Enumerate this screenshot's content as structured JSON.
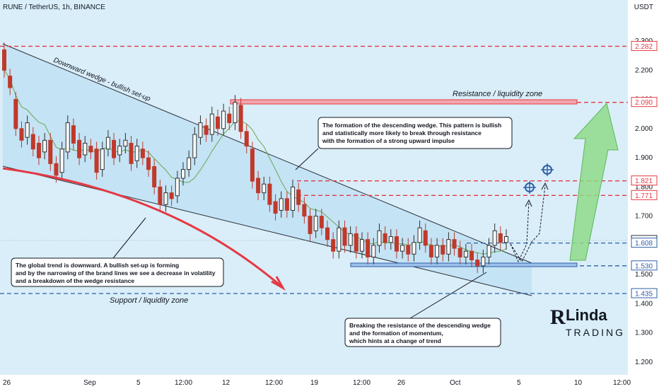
{
  "header": {
    "symbol_line": "RUNE / TetherUS, 1h, BINANCE",
    "currency": "USDT"
  },
  "colors": {
    "background": "#d9eef8",
    "wedge_fill": "#bfe0f5",
    "candle_up": "#2f2f2f",
    "candle_down": "#c0392b",
    "resistance": "#e53944",
    "support": "#2f5ea8",
    "ma_line": "#6aa84f",
    "arrow_green": "#8fd98a"
  },
  "chart_data": {
    "type": "candlestick",
    "x_ticks": [
      "26",
      "Sep",
      "5",
      "12:00",
      "12",
      "12:00",
      "19",
      "12:00",
      "26",
      "Oct",
      "5",
      "10",
      "12:00"
    ],
    "y_ticks": [
      "2.300",
      "2.200",
      "2.100",
      "2.000",
      "1.900",
      "1.800",
      "1.700",
      "1.600",
      "1.500",
      "1.400",
      "1.300",
      "1.200"
    ],
    "ylim": [
      1.18,
      2.32
    ],
    "price_labels": [
      {
        "value": 2.282,
        "label": "2.282",
        "style": "resistance"
      },
      {
        "value": 2.09,
        "label": "2.090",
        "style": "resistance"
      },
      {
        "value": 1.821,
        "label": "1.821",
        "style": "resistance"
      },
      {
        "value": 1.771,
        "label": "1.771",
        "style": "resistance"
      },
      {
        "value": 1.617,
        "label": "1.617",
        "style": "current"
      },
      {
        "value": 1.608,
        "label": "1.608",
        "style": "support"
      },
      {
        "value": 1.53,
        "label": "1.530",
        "style": "support"
      },
      {
        "value": 1.435,
        "label": "1.435",
        "style": "support"
      }
    ],
    "annotations": {
      "wedge_label": "Downward wedge - bullish set-up",
      "resistance_zone": "Resistance / liquidity zone",
      "support_zone": "Support / liquidity zone",
      "note_wedge": [
        "The formation of the descending wedge. This pattern is bullish",
        "and statistically more likely to break through resistance",
        "with the formation of a strong upward impulse"
      ],
      "note_trend": [
        "The global trend is downward. A bullish set-up is forming",
        "and by the narrowing of the brand lines we see a decrease in volatility",
        "and a breakdown of the wedge resistance"
      ],
      "note_breakout": [
        "Breaking the resistance of the descending wedge",
        "and the formation of momentum,",
        "which hints at a change of trend"
      ]
    },
    "price_path": [
      [
        2.27,
        2.2
      ],
      [
        2.18,
        2.14
      ],
      [
        2.1,
        2.0
      ],
      [
        2.0,
        1.96
      ],
      [
        1.97,
        2.02
      ],
      [
        1.98,
        1.93
      ],
      [
        1.95,
        1.9
      ],
      [
        1.92,
        1.96
      ],
      [
        1.96,
        1.88
      ],
      [
        1.88,
        1.84
      ],
      [
        1.85,
        1.93
      ],
      [
        1.92,
        2.02
      ],
      [
        2.01,
        1.95
      ],
      [
        1.96,
        1.9
      ],
      [
        1.91,
        1.95
      ],
      [
        1.94,
        1.92
      ],
      [
        1.93,
        1.85
      ],
      [
        1.86,
        1.93
      ],
      [
        1.93,
        1.97
      ],
      [
        1.96,
        1.9
      ],
      [
        1.91,
        1.94
      ],
      [
        1.94,
        1.96
      ],
      [
        1.95,
        1.88
      ],
      [
        1.89,
        1.94
      ],
      [
        1.93,
        1.9
      ],
      [
        1.9,
        1.86
      ],
      [
        1.87,
        1.8
      ],
      [
        1.8,
        1.74
      ],
      [
        1.74,
        1.78
      ],
      [
        1.78,
        1.76
      ],
      [
        1.77,
        1.83
      ],
      [
        1.83,
        1.86
      ],
      [
        1.86,
        1.9
      ],
      [
        1.9,
        1.98
      ],
      [
        1.97,
        2.02
      ],
      [
        2.01,
        1.98
      ],
      [
        1.98,
        2.05
      ],
      [
        2.04,
        2.0
      ],
      [
        2.0,
        2.06
      ],
      [
        2.05,
        2.02
      ],
      [
        2.02,
        2.09
      ],
      [
        2.08,
        1.99
      ],
      [
        1.99,
        1.94
      ],
      [
        1.93,
        1.82
      ],
      [
        1.83,
        1.78
      ],
      [
        1.78,
        1.81
      ],
      [
        1.81,
        1.74
      ],
      [
        1.75,
        1.71
      ],
      [
        1.72,
        1.76
      ],
      [
        1.76,
        1.72
      ],
      [
        1.72,
        1.8
      ],
      [
        1.79,
        1.74
      ],
      [
        1.74,
        1.7
      ],
      [
        1.7,
        1.64
      ],
      [
        1.65,
        1.7
      ],
      [
        1.7,
        1.66
      ],
      [
        1.66,
        1.62
      ],
      [
        1.62,
        1.58
      ],
      [
        1.58,
        1.66
      ],
      [
        1.66,
        1.6
      ],
      [
        1.6,
        1.64
      ],
      [
        1.64,
        1.58
      ],
      [
        1.58,
        1.62
      ],
      [
        1.62,
        1.56
      ],
      [
        1.56,
        1.6
      ],
      [
        1.6,
        1.65
      ],
      [
        1.64,
        1.61
      ],
      [
        1.61,
        1.63
      ],
      [
        1.63,
        1.58
      ],
      [
        1.58,
        1.6
      ],
      [
        1.6,
        1.57
      ],
      [
        1.57,
        1.61
      ],
      [
        1.61,
        1.66
      ],
      [
        1.65,
        1.6
      ],
      [
        1.6,
        1.56
      ],
      [
        1.56,
        1.6
      ],
      [
        1.6,
        1.57
      ],
      [
        1.57,
        1.62
      ],
      [
        1.62,
        1.59
      ],
      [
        1.59,
        1.56
      ],
      [
        1.56,
        1.58
      ],
      [
        1.58,
        1.55
      ],
      [
        1.55,
        1.53
      ],
      [
        1.53,
        1.56
      ],
      [
        1.56,
        1.6
      ],
      [
        1.6,
        1.65
      ],
      [
        1.64,
        1.61
      ],
      [
        1.61,
        1.63
      ]
    ]
  },
  "watermark": "Linda TRADING"
}
